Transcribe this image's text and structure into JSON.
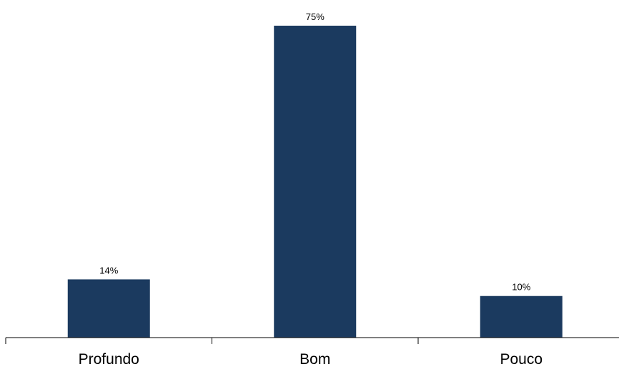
{
  "chart_data": {
    "type": "bar",
    "categories": [
      "Profundo",
      "Bom",
      "Pouco"
    ],
    "values": [
      14,
      75,
      10
    ],
    "value_labels": [
      "14%",
      "75%",
      "10%"
    ],
    "unit": "%",
    "title": "",
    "xlabel": "",
    "ylabel": "",
    "ylim": [
      0,
      75
    ],
    "grid": false,
    "legend": "none",
    "bar_color": "#1b3a5f",
    "axis_color": "#000000"
  }
}
